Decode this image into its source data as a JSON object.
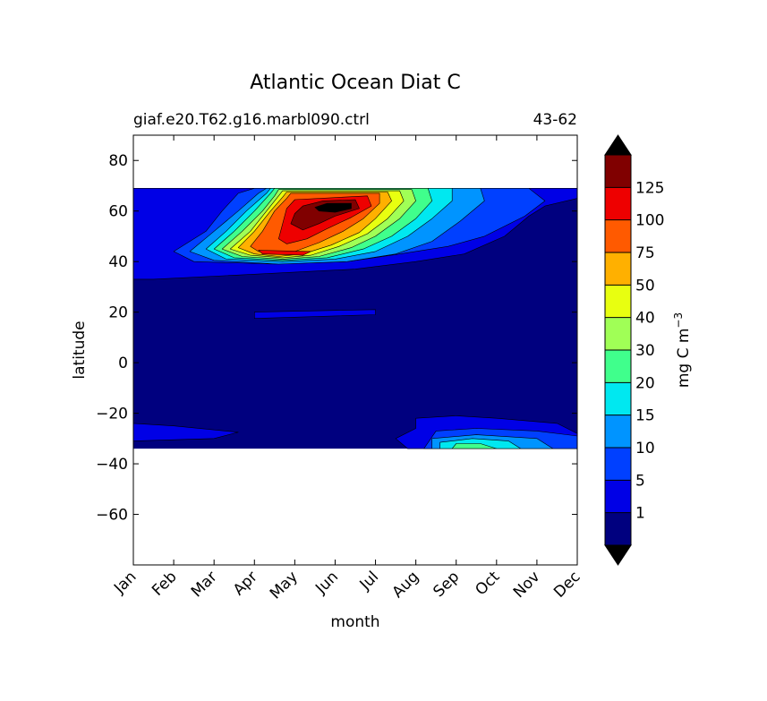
{
  "chart_data": {
    "type": "heatmap",
    "title": "Atlantic Ocean Diat C",
    "subtitle_left": "giaf.e20.T62.g16.marbl090.ctrl",
    "subtitle_right": "43-62",
    "xlabel": "month",
    "ylabel": "latitude",
    "x_ticks": [
      "Jan",
      "Feb",
      "Mar",
      "Apr",
      "May",
      "Jun",
      "Jul",
      "Aug",
      "Sep",
      "Oct",
      "Nov",
      "Dec"
    ],
    "y_ticks": [
      80,
      60,
      40,
      20,
      0,
      -20,
      -40,
      -60
    ],
    "xlim": [
      0,
      11
    ],
    "ylim": [
      -80,
      90
    ],
    "data_lat_range": [
      -34,
      69
    ],
    "colorbar": {
      "label": "mg C m",
      "label_exponent": "−3",
      "levels": [
        0,
        1,
        5,
        10,
        15,
        20,
        30,
        40,
        50,
        75,
        100,
        125,
        150
      ],
      "tick_labels": [
        "1",
        "5",
        "10",
        "15",
        "20",
        "30",
        "40",
        "50",
        "75",
        "100",
        "125"
      ],
      "colors": [
        "#00007f",
        "#0000e6",
        "#0040ff",
        "#0094ff",
        "#00e8f0",
        "#40ff8c",
        "#a0ff56",
        "#e8ff10",
        "#ffb000",
        "#ff5a00",
        "#ee0000",
        "#800000"
      ],
      "extend_min_color": "#000000",
      "extend_max_color": "#000000"
    },
    "fields": [
      {
        "level": 1,
        "polygons": [
          [
            [
              0,
              69
            ],
            [
              11,
              69
            ],
            [
              11,
              65
            ],
            [
              10.2,
              62
            ],
            [
              9.8,
              58
            ],
            [
              9.2,
              50
            ],
            [
              8.2,
              43
            ],
            [
              7,
              40
            ],
            [
              5.5,
              37
            ],
            [
              3,
              35
            ],
            [
              0.5,
              33
            ],
            [
              0,
              33
            ]
          ],
          [
            [
              11,
              -34
            ],
            [
              11,
              -28
            ],
            [
              10.5,
              -24
            ],
            [
              9,
              -22
            ],
            [
              8,
              -21
            ],
            [
              7,
              -22
            ],
            [
              7,
              -26
            ],
            [
              6.5,
              -30
            ],
            [
              6.8,
              -34
            ]
          ],
          [
            [
              0,
              -24
            ],
            [
              1,
              -25
            ],
            [
              2.6,
              -27.5
            ],
            [
              2,
              -30
            ],
            [
              0,
              -31
            ]
          ],
          [
            [
              3,
              20
            ],
            [
              6,
              21
            ],
            [
              6,
              19
            ],
            [
              3,
              17.5
            ]
          ]
        ]
      },
      {
        "level": 5,
        "polygons": [
          [
            [
              9.8,
              69
            ],
            [
              10.2,
              64
            ],
            [
              9.7,
              58
            ],
            [
              8.7,
              50
            ],
            [
              7.8,
              46
            ],
            [
              6.6,
              43
            ],
            [
              5.3,
              40
            ],
            [
              3.5,
              39
            ],
            [
              1.5,
              40
            ],
            [
              1,
              44
            ],
            [
              1.8,
              52
            ],
            [
              2.2,
              60
            ],
            [
              2.6,
              67
            ],
            [
              3,
              69
            ]
          ],
          [
            [
              11,
              -34
            ],
            [
              11,
              -29
            ],
            [
              10,
              -27
            ],
            [
              8.5,
              -26
            ],
            [
              7.5,
              -27
            ],
            [
              7.2,
              -34
            ]
          ]
        ]
      },
      {
        "level": 10,
        "polygons": [
          [
            [
              8.6,
              69
            ],
            [
              8.7,
              64
            ],
            [
              8.1,
              56
            ],
            [
              7.4,
              48
            ],
            [
              6.5,
              43
            ],
            [
              5.3,
              40
            ],
            [
              3.6,
              39
            ],
            [
              2,
              40.5
            ],
            [
              1.4,
              44
            ],
            [
              2,
              52
            ],
            [
              2.6,
              60
            ],
            [
              3.1,
              67
            ],
            [
              3.3,
              69
            ]
          ],
          [
            [
              10.4,
              -34
            ],
            [
              10,
              -30
            ],
            [
              8.5,
              -28.5
            ],
            [
              7.4,
              -30
            ],
            [
              7.4,
              -34
            ]
          ]
        ]
      },
      {
        "level": 15,
        "polygons": [
          [
            [
              7.9,
              69
            ],
            [
              7.9,
              64
            ],
            [
              7.4,
              57
            ],
            [
              6.8,
              50
            ],
            [
              6,
              44
            ],
            [
              5,
              41
            ],
            [
              3.7,
              40
            ],
            [
              2.3,
              41
            ],
            [
              1.8,
              45
            ],
            [
              2.3,
              52
            ],
            [
              2.8,
              60
            ],
            [
              3.3,
              67
            ],
            [
              3.4,
              69
            ]
          ],
          [
            [
              9.6,
              -34
            ],
            [
              9.3,
              -31
            ],
            [
              8.4,
              -30
            ],
            [
              7.6,
              -31.5
            ],
            [
              7.6,
              -34
            ]
          ]
        ]
      },
      {
        "level": 20,
        "polygons": [
          [
            [
              7.3,
              69
            ],
            [
              7.4,
              64
            ],
            [
              7,
              57
            ],
            [
              6.4,
              50
            ],
            [
              5.7,
              45
            ],
            [
              4.8,
              41.5
            ],
            [
              3.7,
              40.5
            ],
            [
              2.5,
              41.5
            ],
            [
              2,
              45
            ],
            [
              2.5,
              52
            ],
            [
              3,
              60
            ],
            [
              3.4,
              67
            ],
            [
              3.5,
              69
            ]
          ],
          [
            [
              9,
              -34
            ],
            [
              8.6,
              -32
            ],
            [
              8,
              -32
            ],
            [
              7.9,
              -34
            ]
          ]
        ]
      },
      {
        "level": 30,
        "polygons": [
          [
            [
              6.9,
              68.5
            ],
            [
              7,
              64
            ],
            [
              6.6,
              57
            ],
            [
              6,
              50
            ],
            [
              5.4,
              45.5
            ],
            [
              4.6,
              42
            ],
            [
              3.7,
              41
            ],
            [
              2.7,
              42
            ],
            [
              2.2,
              45
            ],
            [
              2.7,
              52
            ],
            [
              3.2,
              60
            ],
            [
              3.5,
              66
            ],
            [
              3.6,
              68.5
            ]
          ]
        ]
      },
      {
        "level": 40,
        "polygons": [
          [
            [
              6.6,
              68
            ],
            [
              6.7,
              64
            ],
            [
              6.3,
              57
            ],
            [
              5.8,
              51
            ],
            [
              5.1,
              46
            ],
            [
              4.4,
              42.5
            ],
            [
              3.7,
              41.5
            ],
            [
              2.9,
              42.5
            ],
            [
              2.4,
              45
            ],
            [
              2.9,
              52
            ],
            [
              3.3,
              60
            ],
            [
              3.6,
              66
            ],
            [
              3.7,
              68
            ]
          ]
        ]
      },
      {
        "level": 50,
        "polygons": [
          [
            [
              6.3,
              67.5
            ],
            [
              6.4,
              64
            ],
            [
              6,
              57
            ],
            [
              5.6,
              51.5
            ],
            [
              4.9,
              46.5
            ],
            [
              4.2,
              43
            ],
            [
              3.6,
              42
            ],
            [
              3,
              43
            ],
            [
              2.6,
              45.5
            ],
            [
              3,
              52
            ],
            [
              3.4,
              60
            ],
            [
              3.7,
              65.5
            ],
            [
              3.8,
              67.5
            ]
          ]
        ]
      },
      {
        "level": 75,
        "polygons": [
          [
            [
              6.1,
              67
            ],
            [
              6.1,
              63
            ],
            [
              5.7,
              57
            ],
            [
              5.2,
              52
            ],
            [
              4.6,
              47.5
            ],
            [
              4,
              44
            ],
            [
              3.5,
              43
            ],
            [
              3.1,
              44
            ],
            [
              2.9,
              46
            ],
            [
              3.2,
              52
            ],
            [
              3.5,
              60
            ],
            [
              3.8,
              65
            ],
            [
              3.9,
              67
            ]
          ]
        ]
      },
      {
        "level": 100,
        "polygons": [
          [
            [
              5.8,
              66
            ],
            [
              5.9,
              62
            ],
            [
              5.4,
              57.5
            ],
            [
              4.8,
              53
            ],
            [
              4.3,
              49
            ],
            [
              3.8,
              47
            ],
            [
              3.6,
              49
            ],
            [
              3.7,
              55
            ],
            [
              3.8,
              61
            ],
            [
              4,
              64.5
            ]
          ],
          [
            [
              3.1,
              44.5
            ],
            [
              4.4,
              44
            ],
            [
              4.2,
              42.5
            ],
            [
              3.2,
              43
            ]
          ]
        ]
      },
      {
        "level": 125,
        "polygons": [
          [
            [
              5.5,
              64.5
            ],
            [
              5.6,
              61
            ],
            [
              5,
              58
            ],
            [
              4.6,
              55
            ],
            [
              4.2,
              52.5
            ],
            [
              3.9,
              55
            ],
            [
              4,
              59
            ],
            [
              4.2,
              62
            ],
            [
              4.7,
              64
            ]
          ]
        ]
      },
      {
        "level": 150,
        "polygons": [
          [
            [
              5.4,
              63
            ],
            [
              5.4,
              61
            ],
            [
              5,
              59.5
            ],
            [
              4.6,
              60
            ],
            [
              4.5,
              61.5
            ],
            [
              4.8,
              63
            ]
          ]
        ]
      }
    ]
  }
}
